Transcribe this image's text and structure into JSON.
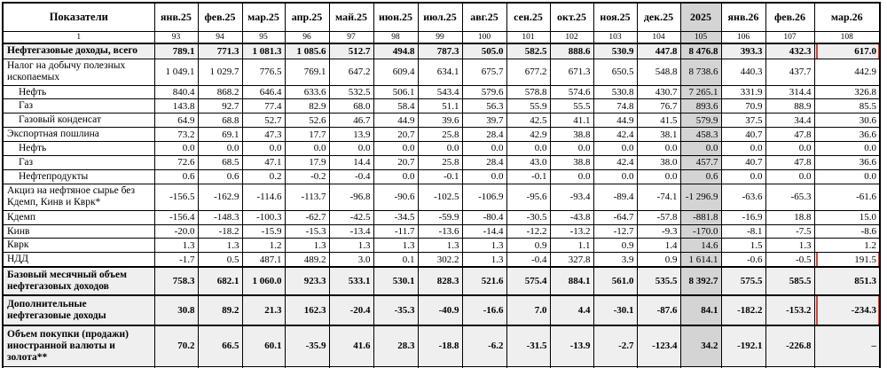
{
  "header": {
    "indicators": "Показатели",
    "indicators_num": "1",
    "months": [
      "янв.25",
      "фев.25",
      "мар.25",
      "апр.25",
      "май.25",
      "июн.25",
      "июл.25",
      "авг.25",
      "сен.25",
      "окт.25",
      "ноя.25",
      "дек.25",
      "2025",
      "янв.26",
      "фев.26",
      "мар.26"
    ],
    "month_nums": [
      "93",
      "94",
      "95",
      "96",
      "97",
      "98",
      "99",
      "100",
      "101",
      "102",
      "103",
      "104",
      "105",
      "106",
      "107",
      "108"
    ]
  },
  "rows": [
    {
      "label": "Нефтегазовые доходы, всего",
      "bold": true,
      "indent": 0,
      "values": [
        "789.1",
        "771.3",
        "1 081.3",
        "1 085.6",
        "512.7",
        "494.8",
        "787.3",
        "505.0",
        "582.5",
        "888.6",
        "530.9",
        "447.8",
        "8 476.8",
        "393.3",
        "432.3",
        "617.0"
      ]
    },
    {
      "label": "Налог на добычу полезных ископаемых",
      "bold": false,
      "indent": 0,
      "values": [
        "1 049.1",
        "1 029.7",
        "776.5",
        "769.1",
        "647.2",
        "609.4",
        "634.1",
        "675.7",
        "677.2",
        "671.3",
        "650.5",
        "548.8",
        "8 738.6",
        "440.3",
        "437.7",
        "442.9"
      ]
    },
    {
      "label": "Нефть",
      "bold": false,
      "indent": 1,
      "values": [
        "840.4",
        "868.2",
        "646.4",
        "633.6",
        "532.5",
        "506.1",
        "543.4",
        "579.6",
        "578.8",
        "574.6",
        "530.8",
        "430.7",
        "7 265.1",
        "331.9",
        "314.4",
        "326.8"
      ]
    },
    {
      "label": "Газ",
      "bold": false,
      "indent": 1,
      "values": [
        "143.8",
        "92.7",
        "77.4",
        "82.9",
        "68.0",
        "58.4",
        "51.1",
        "56.3",
        "55.9",
        "55.5",
        "74.8",
        "76.7",
        "893.6",
        "70.9",
        "88.9",
        "85.5"
      ]
    },
    {
      "label": "Газовый конденсат",
      "bold": false,
      "indent": 1,
      "values": [
        "64.9",
        "68.8",
        "52.7",
        "52.6",
        "46.7",
        "44.9",
        "39.6",
        "39.7",
        "42.5",
        "41.1",
        "44.9",
        "41.5",
        "579.9",
        "37.5",
        "34.4",
        "30.6"
      ]
    },
    {
      "label": "Экспортная пошлина",
      "bold": false,
      "indent": 0,
      "values": [
        "73.2",
        "69.1",
        "47.3",
        "17.7",
        "13.9",
        "20.7",
        "25.8",
        "28.4",
        "42.9",
        "38.8",
        "42.4",
        "38.1",
        "458.3",
        "40.7",
        "47.8",
        "36.6"
      ]
    },
    {
      "label": "Нефть",
      "bold": false,
      "indent": 1,
      "values": [
        "0.0",
        "0.0",
        "0.0",
        "0.0",
        "0.0",
        "0.0",
        "0.0",
        "0.0",
        "0.0",
        "0.0",
        "0.0",
        "0.0",
        "0.0",
        "0.0",
        "0.0",
        "0.0"
      ]
    },
    {
      "label": "Газ",
      "bold": false,
      "indent": 1,
      "values": [
        "72.6",
        "68.5",
        "47.1",
        "17.9",
        "14.4",
        "20.7",
        "25.8",
        "28.4",
        "43.0",
        "38.8",
        "42.4",
        "38.0",
        "457.7",
        "40.7",
        "47.8",
        "36.6"
      ]
    },
    {
      "label": "Нефтепродукты",
      "bold": false,
      "indent": 1,
      "values": [
        "0.6",
        "0.6",
        "0.2",
        "-0.2",
        "-0.4",
        "0.0",
        "-0.1",
        "0.0",
        "-0.1",
        "0.0",
        "0.0",
        "0.0",
        "0.6",
        "0.0",
        "0.0",
        "0.0"
      ]
    },
    {
      "label": "Акциз на нефтяное сырье без Кдемп, Кинв и Кврк*",
      "bold": false,
      "indent": 0,
      "values": [
        "-156.5",
        "-162.9",
        "-114.6",
        "-113.7",
        "-96.8",
        "-90.6",
        "-102.5",
        "-106.9",
        "-95.6",
        "-93.4",
        "-89.4",
        "-74.1",
        "-1 296.9",
        "-63.6",
        "-65.3",
        "-61.6"
      ]
    },
    {
      "label": "Кдемп",
      "bold": false,
      "indent": 0,
      "values": [
        "-156.4",
        "-148.3",
        "-100.3",
        "-62.7",
        "-42.5",
        "-34.5",
        "-59.9",
        "-80.4",
        "-30.5",
        "-43.8",
        "-64.7",
        "-57.8",
        "-881.8",
        "-16.9",
        "18.8",
        "15.0"
      ]
    },
    {
      "label": "Кинв",
      "bold": false,
      "indent": 0,
      "values": [
        "-20.0",
        "-18.2",
        "-15.9",
        "-15.3",
        "-13.4",
        "-11.7",
        "-13.6",
        "-14.4",
        "-12.2",
        "-13.2",
        "-12.7",
        "-9.3",
        "-170.0",
        "-8.1",
        "-7.5",
        "-8.6"
      ]
    },
    {
      "label": "Кврк",
      "bold": false,
      "indent": 0,
      "values": [
        "1.3",
        "1.3",
        "1.2",
        "1.3",
        "1.3",
        "1.3",
        "1.3",
        "1.3",
        "0.9",
        "1.1",
        "0.9",
        "1.4",
        "14.6",
        "1.5",
        "1.3",
        "1.2"
      ]
    },
    {
      "label": "НДД",
      "bold": false,
      "indent": 0,
      "values": [
        "-1.7",
        "0.5",
        "487.1",
        "489.2",
        "3.0",
        "0.1",
        "302.2",
        "1.3",
        "-0.4",
        "327.8",
        "3.9",
        "0.9",
        "1 614.1",
        "-0.6",
        "-0.5",
        "191.5"
      ]
    },
    {
      "label": "Базовый месячный объем нефтегазовых доходов",
      "bold": true,
      "indent": 0,
      "values": [
        "758.3",
        "682.1",
        "1 060.0",
        "923.3",
        "533.1",
        "530.1",
        "828.3",
        "521.6",
        "575.4",
        "884.1",
        "561.0",
        "535.5",
        "8 392.7",
        "575.5",
        "585.5",
        "851.3"
      ]
    },
    {
      "label": "Дополнительные нефтегазовые доходы",
      "bold": true,
      "indent": 0,
      "values": [
        "30.8",
        "89.2",
        "21.3",
        "162.3",
        "-20.4",
        "-35.3",
        "-40.9",
        "-16.6",
        "7.0",
        "4.4",
        "-30.1",
        "-87.6",
        "84.1",
        "-182.2",
        "-153.2",
        "-234.3"
      ]
    },
    {
      "label": "Объем покупки (продажи) иностранной валюты и золота**",
      "bold": true,
      "indent": 0,
      "values": [
        "70.2",
        "66.5",
        "60.1",
        "-35.9",
        "41.6",
        "28.3",
        "-18.8",
        "-6.2",
        "-31.5",
        "-13.9",
        "-2.7",
        "-123.4",
        "34.2",
        "-192.1",
        "-226.8",
        "–"
      ]
    }
  ],
  "red_boxes": [
    {
      "row": 0,
      "col": 15
    },
    {
      "row": 13,
      "col": 15
    },
    {
      "row": 15,
      "col": 15
    }
  ],
  "colors": {
    "total_column_bg": "#d4d4d4",
    "summary_row_bg": "#efefef",
    "red_box": "#cb4a41",
    "grid_border": "#000000",
    "page_break_dash": "#999999"
  }
}
